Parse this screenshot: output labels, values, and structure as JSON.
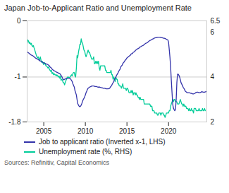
{
  "chart_data": {
    "type": "line",
    "title": "Japan Job-to-Applicant Ratio and Unemployment Rate",
    "annotations": [
      "Sources: Refinitiv, Capital Economics"
    ],
    "xlim": [
      2003.0,
      2024.6
    ],
    "xticks": [
      2005,
      2010,
      2015,
      2020
    ],
    "ylim": [
      -1.8,
      0
    ],
    "yticks": [
      -1.8,
      -1,
      0
    ],
    "y2lim": [
      2,
      6.5
    ],
    "y2ticks": [
      2,
      4,
      6,
      6.5
    ],
    "grid": true,
    "legend": "bottom",
    "series": [
      {
        "name": "Job to applicant ratio (Inverted x-1, LHS)",
        "color": "#3333aa",
        "axis": "y",
        "x": [
          2003.0,
          2003.08,
          2003.17,
          2003.25,
          2003.33,
          2003.42,
          2003.5,
          2003.67,
          2003.75,
          2003.83,
          2003.92,
          2004.0,
          2004.08,
          2004.25,
          2004.42,
          2004.5,
          2004.67,
          2004.75,
          2004.92,
          2005.0,
          2005.17,
          2005.33,
          2005.5,
          2005.67,
          2005.75,
          2005.92,
          2006.0,
          2006.17,
          2006.25,
          2006.42,
          2006.5,
          2006.67,
          2006.75,
          2006.92,
          2007.0,
          2007.08,
          2007.17,
          2007.25,
          2007.33,
          2007.42,
          2007.5,
          2007.67,
          2007.75,
          2008.0,
          2008.08,
          2008.17,
          2008.25,
          2008.33,
          2008.42,
          2008.5,
          2008.67,
          2008.75,
          2008.92,
          2009.0,
          2009.08,
          2009.17,
          2009.25,
          2009.33,
          2009.42,
          2009.5,
          2009.58,
          2009.67,
          2009.75,
          2009.83,
          2009.92,
          2010.0,
          2010.08,
          2010.17,
          2010.25,
          2010.33,
          2010.42,
          2010.5,
          2010.67,
          2010.75,
          2010.92,
          2011.0,
          2011.17,
          2011.33,
          2011.5,
          2011.67,
          2011.75,
          2011.92,
          2012.0,
          2012.17,
          2012.33,
          2012.5,
          2012.67,
          2012.75,
          2012.92,
          2013.0,
          2013.17,
          2013.25,
          2013.42,
          2013.5,
          2013.67,
          2013.75,
          2013.92,
          2014.0,
          2014.17,
          2014.25,
          2014.42,
          2014.5,
          2014.67,
          2014.75,
          2014.92,
          2015.0,
          2015.17,
          2015.25,
          2015.42,
          2015.5,
          2015.67,
          2015.75,
          2015.92,
          2016.0,
          2016.17,
          2016.25,
          2016.42,
          2016.5,
          2016.67,
          2016.75,
          2016.92,
          2017.0,
          2017.17,
          2017.25,
          2017.42,
          2017.5,
          2017.67,
          2017.75,
          2017.92,
          2018.0,
          2018.17,
          2018.25,
          2018.42,
          2018.5,
          2018.67,
          2018.75,
          2018.92,
          2019.0,
          2019.17,
          2019.25,
          2019.42,
          2019.5,
          2019.67,
          2019.75,
          2019.92,
          2020.0,
          2020.08,
          2020.17,
          2020.25,
          2020.33,
          2020.42,
          2020.5,
          2020.58,
          2020.67,
          2020.75,
          2020.83,
          2020.92,
          2021.0,
          2021.08,
          2021.17,
          2021.25,
          2021.33,
          2021.42,
          2021.5,
          2021.67,
          2021.75,
          2021.92,
          2022.0,
          2022.17,
          2022.25,
          2022.42,
          2022.5,
          2022.67,
          2022.75,
          2022.92,
          2023.0,
          2023.17,
          2023.25,
          2023.42,
          2023.5,
          2023.67,
          2023.75,
          2023.92,
          2024.0,
          2024.17,
          2024.33,
          2024.5
        ],
        "values": [
          -0.55,
          -0.56,
          -0.57,
          -0.58,
          -0.59,
          -0.6,
          -0.61,
          -0.62,
          -0.63,
          -0.64,
          -0.65,
          -0.66,
          -0.67,
          -0.68,
          -0.7,
          -0.71,
          -0.72,
          -0.73,
          -0.74,
          -0.75,
          -0.76,
          -0.77,
          -0.78,
          -0.8,
          -0.82,
          -0.84,
          -0.86,
          -0.88,
          -0.89,
          -0.9,
          -0.91,
          -0.92,
          -0.93,
          -0.94,
          -0.95,
          -0.97,
          -0.99,
          -1.02,
          -1.04,
          -1.05,
          -1.04,
          -1.03,
          -1.02,
          -1.02,
          -1.02,
          -1.03,
          -1.04,
          -1.06,
          -1.08,
          -1.12,
          -1.18,
          -1.24,
          -1.32,
          -1.4,
          -1.47,
          -1.5,
          -1.52,
          -1.53,
          -1.52,
          -1.5,
          -1.47,
          -1.43,
          -1.4,
          -1.38,
          -1.35,
          -1.32,
          -1.28,
          -1.25,
          -1.22,
          -1.2,
          -1.19,
          -1.18,
          -1.17,
          -1.16,
          -1.16,
          -1.16,
          -1.17,
          -1.17,
          -1.18,
          -1.18,
          -1.18,
          -1.19,
          -1.19,
          -1.2,
          -1.2,
          -1.21,
          -1.21,
          -1.21,
          -1.2,
          -1.18,
          -1.15,
          -1.12,
          -1.08,
          -1.04,
          -1.0,
          -0.97,
          -0.93,
          -0.9,
          -0.86,
          -0.82,
          -0.79,
          -0.76,
          -0.73,
          -0.71,
          -0.68,
          -0.66,
          -0.64,
          -0.63,
          -0.61,
          -0.59,
          -0.58,
          -0.56,
          -0.55,
          -0.53,
          -0.51,
          -0.5,
          -0.49,
          -0.47,
          -0.46,
          -0.45,
          -0.44,
          -0.43,
          -0.41,
          -0.4,
          -0.39,
          -0.38,
          -0.36,
          -0.35,
          -0.34,
          -0.33,
          -0.32,
          -0.31,
          -0.3,
          -0.3,
          -0.29,
          -0.29,
          -0.29,
          -0.29,
          -0.3,
          -0.3,
          -0.31,
          -0.31,
          -0.32,
          -0.33,
          -0.34,
          -0.38,
          -0.5,
          -0.65,
          -0.82,
          -1.05,
          -1.28,
          -1.48,
          -1.55,
          -1.58,
          -1.6,
          -1.58,
          -1.4,
          -1.1,
          -0.95,
          -0.95,
          -0.97,
          -1.0,
          -1.05,
          -1.1,
          -1.15,
          -1.18,
          -1.22,
          -1.25,
          -1.27,
          -1.28,
          -1.28,
          -1.28,
          -1.29,
          -1.29,
          -1.3,
          -1.3,
          -1.29,
          -1.28,
          -1.27,
          -1.27,
          -1.28,
          -1.28,
          -1.27,
          -1.26,
          -1.27,
          -1.27,
          -1.26
        ]
      },
      {
        "name": "Unemployment rate (%, RHS)",
        "color": "#00cc99",
        "axis": "y2",
        "x": [
          2003.0,
          2003.08,
          2003.17,
          2003.25,
          2003.33,
          2003.42,
          2003.5,
          2003.58,
          2003.67,
          2003.75,
          2003.83,
          2003.92,
          2004.0,
          2004.08,
          2004.17,
          2004.25,
          2004.33,
          2004.42,
          2004.5,
          2004.58,
          2004.67,
          2004.75,
          2004.83,
          2004.92,
          2005.0,
          2005.08,
          2005.17,
          2005.25,
          2005.33,
          2005.42,
          2005.5,
          2005.58,
          2005.67,
          2005.75,
          2005.83,
          2005.92,
          2006.0,
          2006.08,
          2006.17,
          2006.25,
          2006.33,
          2006.42,
          2006.5,
          2006.58,
          2006.67,
          2006.75,
          2006.83,
          2006.92,
          2007.0,
          2007.08,
          2007.17,
          2007.25,
          2007.33,
          2007.42,
          2007.5,
          2007.58,
          2007.67,
          2007.75,
          2007.83,
          2007.92,
          2008.0,
          2008.08,
          2008.17,
          2008.25,
          2008.33,
          2008.42,
          2008.5,
          2008.58,
          2008.67,
          2008.75,
          2008.83,
          2008.92,
          2009.0,
          2009.08,
          2009.17,
          2009.25,
          2009.33,
          2009.42,
          2009.5,
          2009.58,
          2009.67,
          2009.75,
          2009.83,
          2009.92,
          2010.0,
          2010.08,
          2010.17,
          2010.25,
          2010.33,
          2010.42,
          2010.5,
          2010.58,
          2010.67,
          2010.75,
          2010.83,
          2010.92,
          2011.0,
          2011.08,
          2011.17,
          2011.25,
          2011.33,
          2011.42,
          2011.5,
          2011.58,
          2011.67,
          2011.75,
          2011.83,
          2011.92,
          2012.0,
          2012.08,
          2012.17,
          2012.25,
          2012.33,
          2012.42,
          2012.5,
          2012.58,
          2012.67,
          2012.75,
          2012.83,
          2012.92,
          2013.0,
          2013.08,
          2013.17,
          2013.25,
          2013.33,
          2013.42,
          2013.5,
          2013.58,
          2013.67,
          2013.75,
          2013.83,
          2013.92,
          2014.0,
          2014.08,
          2014.17,
          2014.25,
          2014.33,
          2014.42,
          2014.5,
          2014.58,
          2014.67,
          2014.75,
          2014.83,
          2014.92,
          2015.0,
          2015.08,
          2015.17,
          2015.25,
          2015.33,
          2015.42,
          2015.5,
          2015.58,
          2015.67,
          2015.75,
          2015.83,
          2015.92,
          2016.0,
          2016.08,
          2016.17,
          2016.25,
          2016.33,
          2016.42,
          2016.5,
          2016.58,
          2016.67,
          2016.75,
          2016.83,
          2016.92,
          2017.0,
          2017.08,
          2017.17,
          2017.25,
          2017.33,
          2017.42,
          2017.5,
          2017.58,
          2017.67,
          2017.75,
          2017.83,
          2017.92,
          2018.0,
          2018.08,
          2018.17,
          2018.25,
          2018.33,
          2018.42,
          2018.5,
          2018.58,
          2018.67,
          2018.75,
          2018.83,
          2018.92,
          2019.0,
          2019.08,
          2019.17,
          2019.25,
          2019.33,
          2019.42,
          2019.5,
          2019.58,
          2019.67,
          2019.75,
          2019.83,
          2019.92,
          2020.0,
          2020.08,
          2020.17,
          2020.25,
          2020.33,
          2020.42,
          2020.5,
          2020.58,
          2020.67,
          2020.75,
          2020.83,
          2020.92,
          2021.0,
          2021.08,
          2021.17,
          2021.25,
          2021.33,
          2021.42,
          2021.5,
          2021.58,
          2021.67,
          2021.75,
          2021.83,
          2021.92,
          2022.0,
          2022.08,
          2022.17,
          2022.25,
          2022.33,
          2022.42,
          2022.5,
          2022.58,
          2022.67,
          2022.75,
          2022.83,
          2022.92,
          2023.0,
          2023.08,
          2023.17,
          2023.25,
          2023.33,
          2023.42,
          2023.5,
          2023.58,
          2023.67,
          2023.75,
          2023.83,
          2023.92,
          2024.0,
          2024.08,
          2024.17,
          2024.25,
          2024.33,
          2024.42
        ],
        "values": [
          5.5,
          5.65,
          5.6,
          5.5,
          5.55,
          5.45,
          5.5,
          5.4,
          5.35,
          5.4,
          5.3,
          5.2,
          5.1,
          5.0,
          4.9,
          4.85,
          4.9,
          4.8,
          4.75,
          4.9,
          4.75,
          4.65,
          4.7,
          4.6,
          4.55,
          4.65,
          4.6,
          4.5,
          4.5,
          4.45,
          4.4,
          4.45,
          4.35,
          4.3,
          4.25,
          4.3,
          4.15,
          4.2,
          4.1,
          4.15,
          4.1,
          4.1,
          4.05,
          4.1,
          4.05,
          4.0,
          4.05,
          3.95,
          4.05,
          3.85,
          3.9,
          3.85,
          3.75,
          3.75,
          3.65,
          3.75,
          3.85,
          3.9,
          4.0,
          3.95,
          4.0,
          3.95,
          4.0,
          4.05,
          4.1,
          4.05,
          4.15,
          4.2,
          4.2,
          4.05,
          4.0,
          4.4,
          4.95,
          4.85,
          5.1,
          5.25,
          5.45,
          5.45,
          5.7,
          5.55,
          5.5,
          5.35,
          5.2,
          5.15,
          5.0,
          4.9,
          5.0,
          5.1,
          5.2,
          5.1,
          5.1,
          5.0,
          4.9,
          4.8,
          4.8,
          4.8,
          4.9,
          4.6,
          4.6,
          4.7,
          4.6,
          4.7,
          4.6,
          4.7,
          4.4,
          4.3,
          4.5,
          4.5,
          4.5,
          4.5,
          4.5,
          4.5,
          4.5,
          4.3,
          4.3,
          4.2,
          4.2,
          4.2,
          4.2,
          4.2,
          4.2,
          4.3,
          4.1,
          4.1,
          3.9,
          4.0,
          3.9,
          3.8,
          4.0,
          3.9,
          3.9,
          3.7,
          3.7,
          3.6,
          3.6,
          3.6,
          3.5,
          3.6,
          3.7,
          3.5,
          3.5,
          3.5,
          3.5,
          3.4,
          3.5,
          3.5,
          3.4,
          3.3,
          3.3,
          3.3,
          3.4,
          3.3,
          3.4,
          3.2,
          3.3,
          3.3,
          3.2,
          3.3,
          3.2,
          3.2,
          3.1,
          3.1,
          3.0,
          3.1,
          3.0,
          3.0,
          3.0,
          3.0,
          3.0,
          2.8,
          2.8,
          2.8,
          2.8,
          2.8,
          2.8,
          2.8,
          2.8,
          2.8,
          2.7,
          2.7,
          2.7,
          2.5,
          2.5,
          2.5,
          2.4,
          2.4,
          2.4,
          2.4,
          2.3,
          2.3,
          2.4,
          2.4,
          2.4,
          2.3,
          2.4,
          2.4,
          2.4,
          2.3,
          2.3,
          2.2,
          2.3,
          2.4,
          2.4,
          2.4,
          2.4,
          2.5,
          2.5,
          2.7,
          2.8,
          2.9,
          3.0,
          2.9,
          3.0,
          3.0,
          2.9,
          2.9,
          2.9,
          2.8,
          2.8,
          2.8,
          2.9,
          3.0,
          2.9,
          2.8,
          2.8,
          2.7,
          2.8,
          2.7,
          2.7,
          2.7,
          2.6,
          2.6,
          2.6,
          2.5,
          2.6,
          2.5,
          2.5,
          2.6,
          2.5,
          2.5,
          2.4,
          2.6,
          2.6,
          2.6,
          2.5,
          2.5,
          2.5,
          2.5,
          2.6,
          2.5,
          2.5,
          2.5,
          2.5,
          2.6,
          2.5,
          2.5,
          2.6,
          2.5
        ]
      }
    ]
  }
}
